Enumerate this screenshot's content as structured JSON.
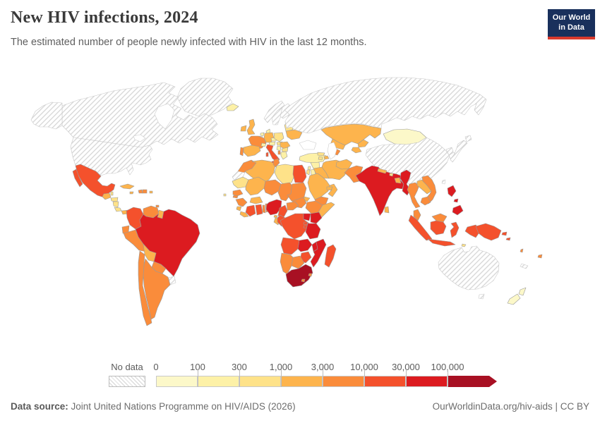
{
  "header": {
    "title": "New HIV infections, 2024",
    "subtitle": "The estimated number of people newly infected with HIV in the last 12 months."
  },
  "logo": {
    "line1": "Our World",
    "line2": "in Data",
    "bg": "#19305c",
    "accent": "#d93a2d"
  },
  "legend": {
    "no_data_label": "No data",
    "tick_labels": [
      "0",
      "100",
      "300",
      "1,000",
      "3,000",
      "10,000",
      "30,000",
      "100,000"
    ],
    "colors": [
      "#fcf8c9",
      "#fdf1a7",
      "#fee289",
      "#fdb44d",
      "#fa8c3b",
      "#f4512c",
      "#dc1b20",
      "#a81023"
    ],
    "no_data_border": "#bdbdbd"
  },
  "footer": {
    "source_label": "Data source:",
    "source_text": " Joint United Nations Programme on HIV/AIDS (2026)",
    "link_text": "OurWorldinData.org/hiv-aids | CC BY"
  },
  "chart_data": {
    "type": "choropleth",
    "title": "New HIV infections, 2024",
    "subtitle": "The estimated number of people newly infected with HIV in the last 12 months.",
    "year": 2024,
    "legend_position": "bottom",
    "bins": [
      "0-100",
      "100-300",
      "300-1,000",
      "1,000-3,000",
      "3,000-10,000",
      "10,000-30,000",
      "30,000-100,000",
      "100,000+"
    ],
    "no_data": "No data",
    "countries": {
      "canada": {
        "name": "Canada",
        "bin": null
      },
      "usa": {
        "name": "United States",
        "bin": null
      },
      "greenland": {
        "name": "Greenland",
        "bin": null
      },
      "mexico": {
        "name": "Mexico",
        "bin": 5
      },
      "guatemala": {
        "name": "Guatemala",
        "bin": 3
      },
      "belize": {
        "name": "Belize",
        "bin": 2
      },
      "honduras": {
        "name": "Honduras",
        "bin": 2
      },
      "nicaragua": {
        "name": "Nicaragua",
        "bin": 2
      },
      "costa_rica": {
        "name": "Costa Rica",
        "bin": 2
      },
      "panama": {
        "name": "Panama",
        "bin": 3
      },
      "cuba": {
        "name": "Cuba",
        "bin": 3
      },
      "jamaica": {
        "name": "Jamaica",
        "bin": 3
      },
      "haiti": {
        "name": "Haiti",
        "bin": 4
      },
      "dominican_republic": {
        "name": "Dominican Republic",
        "bin": 4
      },
      "puerto_rico": {
        "name": "Puerto Rico",
        "bin": 3
      },
      "trinidad_and_tobago": {
        "name": "Trinidad and Tobago",
        "bin": 4
      },
      "colombia": {
        "name": "Colombia",
        "bin": 5
      },
      "venezuela": {
        "name": "Venezuela",
        "bin": 4
      },
      "guyana": {
        "name": "Guyana",
        "bin": 3
      },
      "suriname": {
        "name": "Suriname",
        "bin": 2
      },
      "french_guiana": {
        "name": "French Guiana",
        "bin": null
      },
      "ecuador": {
        "name": "Ecuador",
        "bin": 4
      },
      "peru": {
        "name": "Peru",
        "bin": 4
      },
      "brazil": {
        "name": "Brazil",
        "bin": 6
      },
      "bolivia": {
        "name": "Bolivia",
        "bin": 3
      },
      "paraguay": {
        "name": "Paraguay",
        "bin": 4
      },
      "chile": {
        "name": "Chile",
        "bin": 4
      },
      "argentina": {
        "name": "Argentina",
        "bin": 4
      },
      "uruguay": {
        "name": "Uruguay",
        "bin": null
      },
      "iceland": {
        "name": "Iceland",
        "bin": 1
      },
      "ireland": {
        "name": "Ireland",
        "bin": 3
      },
      "uk": {
        "name": "United Kingdom",
        "bin": 3
      },
      "norway": {
        "name": "Norway",
        "bin": null
      },
      "sweden": {
        "name": "Sweden",
        "bin": null
      },
      "finland": {
        "name": "Finland",
        "bin": null
      },
      "baltic_states": {
        "name": "Baltic states",
        "bin": null
      },
      "denmark": {
        "name": "Denmark",
        "bin": 1
      },
      "netherlands": {
        "name": "Netherlands",
        "bin": 1
      },
      "belgium": {
        "name": "Belgium",
        "bin": 1
      },
      "germany": {
        "name": "Germany",
        "bin": 3
      },
      "france": {
        "name": "France",
        "bin": 4
      },
      "switzerland": {
        "name": "Switzerland",
        "bin": 1
      },
      "austria": {
        "name": "Austria",
        "bin": 1
      },
      "czechia": {
        "name": "Czechia",
        "bin": 1
      },
      "poland": {
        "name": "Poland",
        "bin": 2
      },
      "spain": {
        "name": "Spain",
        "bin": 3
      },
      "portugal": {
        "name": "Portugal",
        "bin": 4
      },
      "italy": {
        "name": "Italy",
        "bin": 5
      },
      "hungary": {
        "name": "Hungary",
        "bin": 2
      },
      "serbia": {
        "name": "Serbia",
        "bin": 1
      },
      "romania": {
        "name": "Romania",
        "bin": 3
      },
      "bulgaria": {
        "name": "Bulgaria",
        "bin": 2
      },
      "albania": {
        "name": "Albania",
        "bin": 4
      },
      "greece": {
        "name": "Greece",
        "bin": 1
      },
      "belarus": {
        "name": "Belarus",
        "bin": 2
      },
      "ukraine": {
        "name": "Ukraine",
        "bin": 3
      },
      "russia": {
        "name": "Russia",
        "bin": null
      },
      "kazakhstan": {
        "name": "Kazakhstan",
        "bin": 3
      },
      "uzbekistan": {
        "name": "Uzbekistan",
        "bin": 3
      },
      "turkmenistan": {
        "name": "Turkmenistan",
        "bin": 4
      },
      "kyrgyzstan": {
        "name": "Kyrgyzstan",
        "bin": 3
      },
      "tajikistan": {
        "name": "Tajikistan",
        "bin": 3
      },
      "mongolia": {
        "name": "Mongolia",
        "bin": 0
      },
      "china": {
        "name": "China",
        "bin": null
      },
      "north_korea": {
        "name": "North Korea",
        "bin": null
      },
      "south_korea": {
        "name": "South Korea",
        "bin": null
      },
      "japan": {
        "name": "Japan",
        "bin": null
      },
      "taiwan": {
        "name": "Taiwan",
        "bin": null
      },
      "turkey": {
        "name": "Turkey",
        "bin": 1
      },
      "georgia": {
        "name": "Georgia",
        "bin": 2
      },
      "armenia": {
        "name": "Armenia",
        "bin": 2
      },
      "azerbaijan": {
        "name": "Azerbaijan",
        "bin": 3
      },
      "syria": {
        "name": "Syria",
        "bin": 1
      },
      "lebanon": {
        "name": "Lebanon",
        "bin": 1
      },
      "israel": {
        "name": "Israel",
        "bin": 2
      },
      "jordan": {
        "name": "Jordan",
        "bin": 1
      },
      "iraq": {
        "name": "Iraq",
        "bin": 3
      },
      "iran": {
        "name": "Iran",
        "bin": 3
      },
      "saudi_arabia": {
        "name": "Saudi Arabia",
        "bin": 3
      },
      "yemen": {
        "name": "Yemen",
        "bin": 4
      },
      "oman": {
        "name": "Oman",
        "bin": 3
      },
      "uae": {
        "name": "United Arab Emirates",
        "bin": 3
      },
      "afghanistan": {
        "name": "Afghanistan",
        "bin": 3
      },
      "pakistan": {
        "name": "Pakistan",
        "bin": 4
      },
      "india": {
        "name": "India",
        "bin": 6
      },
      "nepal": {
        "name": "Nepal",
        "bin": 3
      },
      "bhutan": {
        "name": "Bhutan",
        "bin": 2
      },
      "bangladesh": {
        "name": "Bangladesh",
        "bin": 3
      },
      "sri_lanka": {
        "name": "Sri Lanka",
        "bin": 3
      },
      "myanmar": {
        "name": "Myanmar",
        "bin": 6
      },
      "thailand": {
        "name": "Thailand",
        "bin": 4
      },
      "laos": {
        "name": "Laos",
        "bin": 3
      },
      "vietnam": {
        "name": "Vietnam",
        "bin": 4
      },
      "cambodia": {
        "name": "Cambodia",
        "bin": 4
      },
      "malaysia": {
        "name": "Malaysia",
        "bin": 4
      },
      "indonesia": {
        "name": "Indonesia",
        "bin": 5
      },
      "timor_leste": {
        "name": "Timor-Leste",
        "bin": 2
      },
      "philippines": {
        "name": "Philippines",
        "bin": 6
      },
      "papua_new_guinea": {
        "name": "Papua New Guinea",
        "bin": 5
      },
      "solomon_islands": {
        "name": "Solomon Islands",
        "bin": 5
      },
      "vanuatu": {
        "name": "Vanuatu",
        "bin": 4
      },
      "fiji": {
        "name": "Fiji",
        "bin": 4
      },
      "new_caledonia": {
        "name": "New Caledonia",
        "bin": null
      },
      "australia": {
        "name": "Australia",
        "bin": null
      },
      "new_zealand": {
        "name": "New Zealand",
        "bin": 0
      },
      "morocco": {
        "name": "Morocco",
        "bin": 4
      },
      "western_sahara": {
        "name": "Western Sahara",
        "bin": null
      },
      "algeria": {
        "name": "Algeria",
        "bin": 3
      },
      "tunisia": {
        "name": "Tunisia",
        "bin": 4
      },
      "libya": {
        "name": "Libya",
        "bin": 2
      },
      "egypt": {
        "name": "Egypt",
        "bin": 5
      },
      "mauritania": {
        "name": "Mauritania",
        "bin": 2
      },
      "mali": {
        "name": "Mali",
        "bin": 3
      },
      "niger": {
        "name": "Niger",
        "bin": 4
      },
      "chad": {
        "name": "Chad",
        "bin": 4
      },
      "sudan": {
        "name": "Sudan",
        "bin": 4
      },
      "eritrea": {
        "name": "Eritrea",
        "bin": 3
      },
      "djibouti": {
        "name": "Djibouti",
        "bin": 3
      },
      "ethiopia": {
        "name": "Ethiopia",
        "bin": 4
      },
      "somalia": {
        "name": "Somalia",
        "bin": 3
      },
      "senegal": {
        "name": "Senegal",
        "bin": 4
      },
      "gambia": {
        "name": "Gambia",
        "bin": 4
      },
      "cape_verde": {
        "name": "Cape Verde",
        "bin": 2
      },
      "guinea": {
        "name": "Guinea",
        "bin": 4
      },
      "sierra_leone": {
        "name": "Sierra Leone",
        "bin": 3
      },
      "liberia": {
        "name": "Liberia",
        "bin": 3
      },
      "cote_divoire": {
        "name": "Cote d'Ivoire",
        "bin": 5
      },
      "ghana": {
        "name": "Ghana",
        "bin": 5
      },
      "togo": {
        "name": "Togo",
        "bin": 4
      },
      "benin": {
        "name": "Benin",
        "bin": 4
      },
      "burkina_faso": {
        "name": "Burkina Faso",
        "bin": 3
      },
      "nigeria": {
        "name": "Nigeria",
        "bin": 6
      },
      "cameroon": {
        "name": "Cameroon",
        "bin": 5
      },
      "central_african_republic": {
        "name": "Central African Republic",
        "bin": 4
      },
      "south_sudan": {
        "name": "South Sudan",
        "bin": 4
      },
      "equatorial_guinea": {
        "name": "Equatorial Guinea",
        "bin": 3
      },
      "gabon": {
        "name": "Gabon",
        "bin": 3
      },
      "congo": {
        "name": "Congo",
        "bin": 5
      },
      "drc": {
        "name": "Democratic Republic of Congo",
        "bin": 5
      },
      "uganda": {
        "name": "Uganda",
        "bin": 6
      },
      "kenya": {
        "name": "Kenya",
        "bin": 6
      },
      "rwanda": {
        "name": "Rwanda",
        "bin": 5
      },
      "burundi": {
        "name": "Burundi",
        "bin": 5
      },
      "tanzania": {
        "name": "Tanzania",
        "bin": 6
      },
      "angola": {
        "name": "Angola",
        "bin": 5
      },
      "zambia": {
        "name": "Zambia",
        "bin": 6
      },
      "malawi": {
        "name": "Malawi",
        "bin": 6
      },
      "mozambique": {
        "name": "Mozambique",
        "bin": 6
      },
      "zimbabwe": {
        "name": "Zimbabwe",
        "bin": 5
      },
      "botswana": {
        "name": "Botswana",
        "bin": 4
      },
      "namibia": {
        "name": "Namibia",
        "bin": 4
      },
      "south_africa": {
        "name": "South Africa",
        "bin": 7
      },
      "lesotho": {
        "name": "Lesotho",
        "bin": 4
      },
      "eswatini": {
        "name": "Eswatini",
        "bin": 4
      },
      "madagascar": {
        "name": "Madagascar",
        "bin": 5
      }
    }
  }
}
